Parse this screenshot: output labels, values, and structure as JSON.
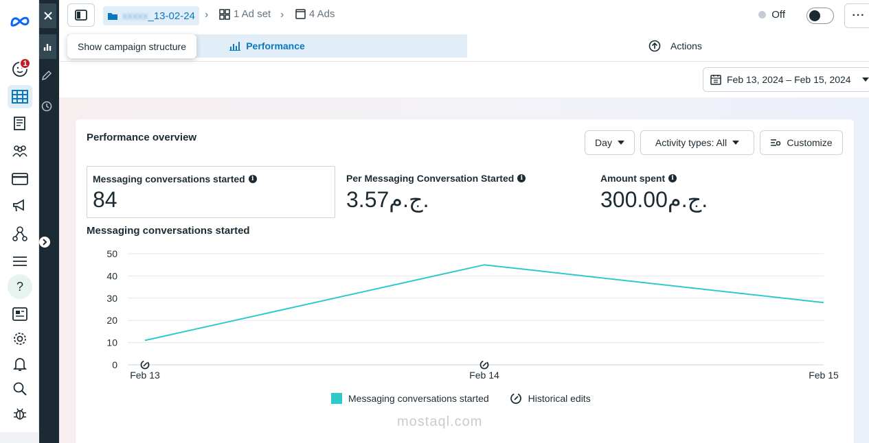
{
  "topbar": {
    "campaign_name": "_13-02-24",
    "ad_set": "1 Ad set",
    "ads": "4 Ads",
    "status": "Off"
  },
  "tooltip": "Show campaign structure",
  "tabs": {
    "performance": "Performance",
    "actions": "Actions"
  },
  "date_range": "Feb 13, 2024 – Feb 15, 2024",
  "badge_count": "1",
  "overview": {
    "title": "Performance overview",
    "day_label": "Day",
    "activity_label": "Activity types: All",
    "customize_label": "Customize",
    "metrics": [
      {
        "label": "Messaging conversations started",
        "value": "84"
      },
      {
        "label": "Per Messaging Conversation Started",
        "value": "3.57ج.م."
      },
      {
        "label": "Amount spent",
        "value": "300.00ج.م."
      }
    ]
  },
  "watermark": "mostaql.com",
  "chart_data": {
    "type": "line",
    "title": "Messaging conversations started",
    "categories": [
      "Feb 13",
      "Feb 14",
      "Feb 15"
    ],
    "series": [
      {
        "name": "Messaging conversations started",
        "values": [
          11,
          45,
          28
        ]
      }
    ],
    "ylim": [
      0,
      50
    ],
    "yticks": [
      0,
      10,
      20,
      30,
      40,
      50
    ],
    "grid": true,
    "color": "#2ec9c9",
    "legend": [
      "Messaging conversations started",
      "Historical edits"
    ],
    "legend_position": "bottom"
  }
}
